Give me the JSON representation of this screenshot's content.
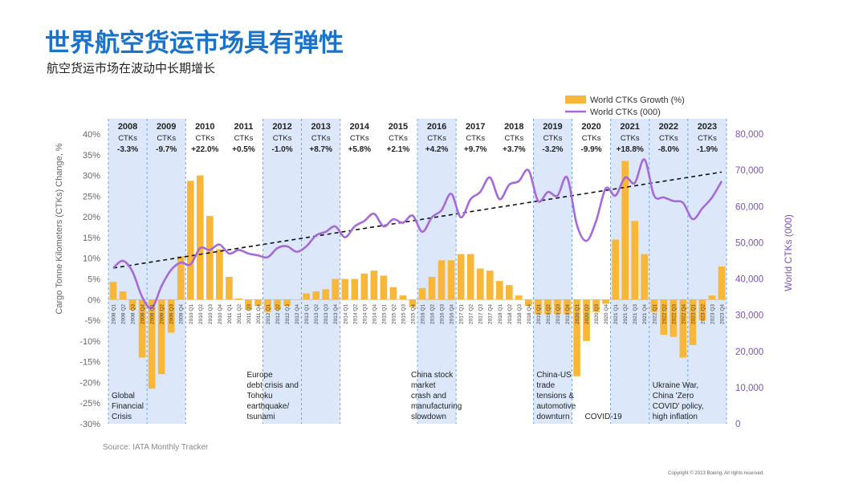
{
  "page": {
    "title": "世界航空货运市场具有弹性",
    "subtitle": "航空货运市场在波动中长期增长",
    "source": "Source: IATA Monthly Tracker",
    "copyright": "Copyright © 2023 Boeing. All rights reserved."
  },
  "colors": {
    "bar": "#f9b73a",
    "line": "#a56ad8",
    "band": "#dce8fa",
    "trend": "#111111",
    "left_axis": "#666666",
    "right_axis": "#7b4fbf"
  },
  "chart_data": {
    "type": "bar+line",
    "y_left": {
      "label": "Cargo Tonne Kilometers (CTKs) Change, %",
      "min": -30,
      "max": 40,
      "ticks": [
        40,
        35,
        30,
        25,
        20,
        15,
        10,
        5,
        0,
        -5,
        -10,
        -15,
        -20,
        -25,
        -30
      ],
      "tick_labels": [
        "40%",
        "35%",
        "30%",
        "25%",
        "20%",
        "15%",
        "10%",
        "5%",
        "0%",
        "-5%",
        "-10%",
        "-15%",
        "-20%",
        "-25%",
        "-30%"
      ]
    },
    "y_right": {
      "label": "World CTKs (000)",
      "min": 0,
      "max": 80000,
      "ticks": [
        80000,
        70000,
        60000,
        50000,
        40000,
        30000,
        20000,
        10000,
        0
      ],
      "tick_labels": [
        "80,000",
        "70,000",
        "60,000",
        "50,000",
        "40,000",
        "30,000",
        "20,000",
        "10,000",
        "0"
      ]
    },
    "legend": [
      "World CTKs Growth (%)",
      "World CTKs (000)"
    ],
    "categories": [
      "2008 Q1",
      "2008 Q2",
      "2008 Q3",
      "2008 Q4",
      "2009 Q1",
      "2009 Q2",
      "2009 Q3",
      "2009 Q4",
      "2010 Q1",
      "2010 Q2",
      "2010 Q3",
      "2010 Q4",
      "2011 Q1",
      "2011 Q2",
      "2011 Q3",
      "2011 Q4",
      "2012 Q1",
      "2012 Q2",
      "2012 Q3",
      "2012 Q4",
      "2013 Q1",
      "2013 Q2",
      "2013 Q3",
      "2013 Q4",
      "2014 Q1",
      "2014 Q2",
      "2014 Q3",
      "2014 Q4",
      "2015 Q1",
      "2015 Q2",
      "2015 Q3",
      "2015 Q4",
      "2016 Q1",
      "2016 Q2",
      "2016 Q3",
      "2016 Q4",
      "2017 Q1",
      "2017 Q2",
      "2017 Q3",
      "2017 Q4",
      "2018 Q1",
      "2018 Q2",
      "2018 Q3",
      "2018 Q4",
      "2019 Q1",
      "2019 Q2",
      "2019 Q3",
      "2019 Q4",
      "2020 Q1",
      "2020 Q2",
      "2020 Q3",
      "2020 Q4",
      "2021 Q1",
      "2021 Q2",
      "2021 Q3",
      "2021 Q4",
      "2022 Q1",
      "2022 Q2",
      "2022 Q3",
      "2022 Q4",
      "2023 Q1",
      "2023 Q2",
      "2023 Q3",
      "2023 Q4"
    ],
    "bar_series": {
      "name": "World CTKs Growth (%)",
      "values": [
        4.3,
        2.0,
        -2.5,
        -14,
        -21.5,
        -18,
        -8,
        10.5,
        28.7,
        30,
        20.2,
        12.2,
        5.5,
        0.3,
        -2.5,
        -1.5,
        -3,
        -2.5,
        -1.5,
        0,
        1.5,
        2,
        2.5,
        5,
        5,
        5,
        6.3,
        7,
        5.8,
        3,
        1,
        -1.8,
        2.8,
        5.5,
        9.5,
        9.5,
        11,
        11,
        7.5,
        7,
        4.5,
        3.5,
        1,
        -1.5,
        -3.5,
        -3.5,
        -3.5,
        -3.5,
        -18.5,
        -10,
        -3,
        -1,
        14.5,
        33.5,
        19,
        11,
        -3,
        -8.5,
        -9,
        -14,
        -11,
        -5,
        1,
        8
      ]
    },
    "line_series": {
      "name": "World CTKs (000)",
      "values": [
        43000,
        45000,
        42000,
        35000,
        32000,
        38000,
        42500,
        44500,
        44000,
        48500,
        48000,
        49500,
        47000,
        48000,
        47000,
        46500,
        46000,
        48500,
        49000,
        47500,
        49000,
        52000,
        53000,
        54500,
        51500,
        54500,
        56000,
        58000,
        54500,
        56500,
        55500,
        57500,
        53000,
        57000,
        59000,
        63500,
        57000,
        62000,
        64000,
        68000,
        62000,
        66000,
        67000,
        70000,
        61500,
        64000,
        63000,
        68000,
        55000,
        50500,
        56000,
        65000,
        63000,
        68000,
        66500,
        73000,
        63000,
        62500,
        61500,
        61000,
        56500,
        59500,
        62500,
        67000
      ]
    },
    "trend_line": {
      "style": "dashed",
      "from_index": 0,
      "to_index": 63,
      "from_value": 43000,
      "to_value": 69500
    },
    "year_annotations": [
      {
        "year": "2008",
        "label": "CTKs",
        "value": "-3.3%",
        "shaded": true
      },
      {
        "year": "2009",
        "label": "CTKs",
        "value": "-9.7%",
        "shaded": true
      },
      {
        "year": "2010",
        "label": "CTKs",
        "value": "+22.0%",
        "shaded": false
      },
      {
        "year": "2011",
        "label": "CTKs",
        "value": "+0.5%",
        "shaded": false
      },
      {
        "year": "2012",
        "label": "CTKs",
        "value": "-1.0%",
        "shaded": true
      },
      {
        "year": "2013",
        "label": "CTKs",
        "value": "+8.7%",
        "shaded": true
      },
      {
        "year": "2014",
        "label": "CTKs",
        "value": "+5.8%",
        "shaded": false
      },
      {
        "year": "2015",
        "label": "CTKs",
        "value": "+2.1%",
        "shaded": false
      },
      {
        "year": "2016",
        "label": "CTKs",
        "value": "+4.2%",
        "shaded": true
      },
      {
        "year": "2017",
        "label": "CTKs",
        "value": "+9.7%",
        "shaded": false
      },
      {
        "year": "2018",
        "label": "CTKs",
        "value": "+3.7%",
        "shaded": false
      },
      {
        "year": "2019",
        "label": "CTKs",
        "value": "-3.2%",
        "shaded": true
      },
      {
        "year": "2020",
        "label": "CTKs",
        "value": "-9.9%",
        "shaded": false
      },
      {
        "year": "2021",
        "label": "CTKs",
        "value": "+18.8%",
        "shaded": true
      },
      {
        "year": "2022",
        "label": "CTKs",
        "value": "-8.0%",
        "shaded": true
      },
      {
        "year": "2023",
        "label": "CTKs",
        "value": "-1.9%",
        "shaded": true
      }
    ],
    "shaded_periods": [
      {
        "from": "2008 Q1",
        "to": "2009 Q3",
        "lines": [
          "Global",
          "Financial",
          "Crisis"
        ]
      },
      {
        "from": "2011 Q3",
        "to": "2013 Q2",
        "lines": [
          "Europe",
          "debt crisis and",
          "Tohoku",
          "earthquake/",
          "tsunami"
        ]
      },
      {
        "from": "2015 Q4",
        "to": "2016 Q3",
        "lines": [
          "China stock",
          "market",
          "crash and",
          "manufacturing",
          "slowdown"
        ]
      },
      {
        "from": "2019 Q1",
        "to": "2020 Q1",
        "lines": [
          "China-US",
          "trade",
          "tensions &",
          "automotive",
          "downturn"
        ]
      },
      {
        "from": "2020 Q2",
        "to": "2021 Q4",
        "lines": [
          "COVID-19"
        ]
      },
      {
        "from": "2022 Q1",
        "to": "2023 Q3",
        "lines": [
          "Ukraine War,",
          "China 'Zero",
          "COVID' policy,",
          "high inflation"
        ]
      }
    ]
  }
}
